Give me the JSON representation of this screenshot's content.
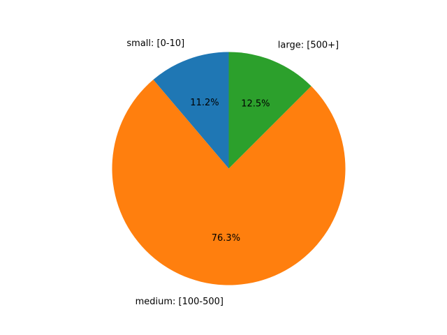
{
  "chart_data": {
    "type": "pie",
    "title": "",
    "start_angle_deg": 90,
    "direction": "counterclockwise",
    "slices": [
      {
        "label": "small: [0-10]",
        "pct_label": "11.2%",
        "value": 11.2,
        "color": "#1f77b4"
      },
      {
        "label": "medium: [100-500]",
        "pct_label": "76.3%",
        "value": 76.3,
        "color": "#ff7f0e"
      },
      {
        "label": "large: [500+]",
        "pct_label": "12.5%",
        "value": 12.5,
        "color": "#2ca02c"
      }
    ]
  }
}
